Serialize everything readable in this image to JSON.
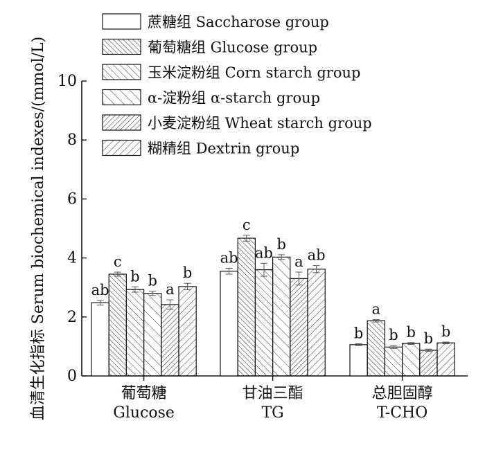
{
  "chart_data": {
    "type": "bar",
    "ylabel": "血清生化指标  Serum biochemical indexes/(mmol/L)",
    "ylim": [
      0,
      10
    ],
    "yticks": [
      0,
      2,
      4,
      6,
      8,
      10
    ],
    "legend_position": "top-left",
    "categories": [
      {
        "cn": "葡萄糖",
        "en": "Glucose"
      },
      {
        "cn": "甘油三酯",
        "en": "TG"
      },
      {
        "cn": "总胆固醇",
        "en": "T-CHO"
      }
    ],
    "series": [
      {
        "name": "蔗糖组 Saccharose group",
        "pattern": "none",
        "values": [
          2.48,
          3.55,
          1.06
        ],
        "errors": [
          0.08,
          0.1,
          0.03
        ],
        "letters": [
          "ab",
          "ab",
          "b"
        ]
      },
      {
        "name": "葡萄糖组  Glucose group",
        "pattern": "diag-dense",
        "values": [
          3.45,
          4.67,
          1.87
        ],
        "errors": [
          0.07,
          0.1,
          0.04
        ],
        "letters": [
          "c",
          "c",
          "a"
        ]
      },
      {
        "name": "玉米淀粉组 Corn starch group",
        "pattern": "diag-medium",
        "values": [
          2.93,
          3.6,
          0.98
        ],
        "errors": [
          0.09,
          0.22,
          0.05
        ],
        "letters": [
          "b",
          "ab",
          "b"
        ]
      },
      {
        "name": "α-淀粉组 α-starch group",
        "pattern": "diag-wide",
        "values": [
          2.8,
          4.03,
          1.1
        ],
        "errors": [
          0.07,
          0.08,
          0.03
        ],
        "letters": [
          "b",
          "b",
          "b"
        ]
      },
      {
        "name": "小麦淀粉组 Wheat starch group",
        "pattern": "back-dense",
        "values": [
          2.42,
          3.3,
          0.87
        ],
        "errors": [
          0.16,
          0.22,
          0.04
        ],
        "letters": [
          "a",
          "a",
          "b"
        ]
      },
      {
        "name": "糊精组 Dextrin group",
        "pattern": "back-medium",
        "values": [
          3.03,
          3.62,
          1.12
        ],
        "errors": [
          0.11,
          0.12,
          0.03
        ],
        "letters": [
          "b",
          "ab",
          "b"
        ]
      }
    ]
  }
}
